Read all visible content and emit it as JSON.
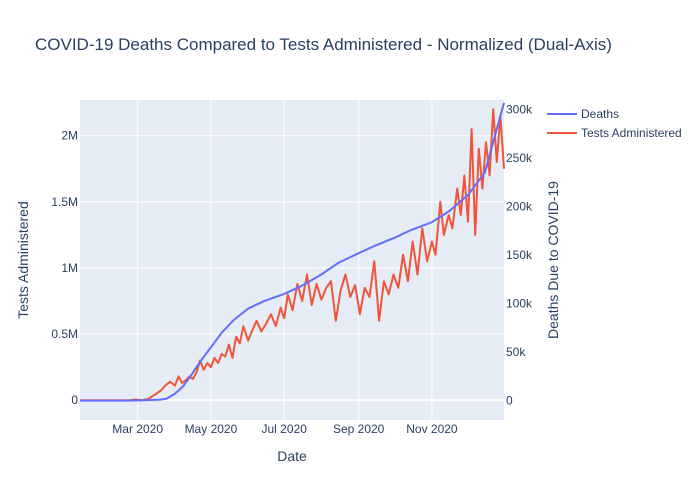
{
  "chart_data": {
    "type": "line",
    "title": "COVID-19 Deaths Compared to Tests Administered - Normalized (Dual-Axis)",
    "xlabel": "Date",
    "ylabel_left": "Tests Administered",
    "ylabel_right": "Deaths Due to COVID-19",
    "xlim": [
      "2020-01-13",
      "2020-12-31"
    ],
    "ylim_left": [
      -150000,
      2270000
    ],
    "ylim_right": [
      -20000,
      310000
    ],
    "x_ticks": [
      {
        "date": "2020-03-01",
        "label": "Mar 2020"
      },
      {
        "date": "2020-05-01",
        "label": "May 2020"
      },
      {
        "date": "2020-07-01",
        "label": "Jul 2020"
      },
      {
        "date": "2020-09-01",
        "label": "Sep 2020"
      },
      {
        "date": "2020-11-01",
        "label": "Nov 2020"
      }
    ],
    "y_left_ticks": [
      {
        "value": 0,
        "label": "0"
      },
      {
        "value": 500000,
        "label": "0.5M"
      },
      {
        "value": 1000000,
        "label": "1M"
      },
      {
        "value": 1500000,
        "label": "1.5M"
      },
      {
        "value": 2000000,
        "label": "2M"
      }
    ],
    "y_right_ticks": [
      {
        "value": 0,
        "label": "0"
      },
      {
        "value": 50000,
        "label": "50k"
      },
      {
        "value": 100000,
        "label": "100k"
      },
      {
        "value": 150000,
        "label": "150k"
      },
      {
        "value": 200000,
        "label": "200k"
      },
      {
        "value": 250000,
        "label": "250k"
      },
      {
        "value": 300000,
        "label": "300k"
      }
    ],
    "grid": true,
    "legend_position": "top-right",
    "series": [
      {
        "name": "Deaths",
        "axis": "right",
        "color": "#636efa",
        "x": [
          "2020-01-13",
          "2020-02-20",
          "2020-03-10",
          "2020-03-20",
          "2020-03-25",
          "2020-04-01",
          "2020-04-08",
          "2020-04-15",
          "2020-04-22",
          "2020-05-01",
          "2020-05-10",
          "2020-05-20",
          "2020-06-01",
          "2020-06-15",
          "2020-07-01",
          "2020-07-15",
          "2020-08-01",
          "2020-08-15",
          "2020-09-01",
          "2020-09-15",
          "2020-10-01",
          "2020-10-15",
          "2020-11-01",
          "2020-11-15",
          "2020-12-01",
          "2020-12-15",
          "2020-12-31"
        ],
        "values": [
          0,
          50,
          500,
          1000,
          2000,
          7000,
          15000,
          27000,
          40000,
          55000,
          70000,
          83000,
          95000,
          103000,
          110000,
          118000,
          130000,
          142000,
          152000,
          160000,
          168000,
          176000,
          184000,
          195000,
          212000,
          235000,
          307000
        ]
      },
      {
        "name": "Tests Administered",
        "axis": "left",
        "color": "#ef553b",
        "x": [
          "2020-01-13",
          "2020-02-24",
          "2020-02-28",
          "2020-03-05",
          "2020-03-10",
          "2020-03-15",
          "2020-03-20",
          "2020-03-24",
          "2020-03-28",
          "2020-04-01",
          "2020-04-04",
          "2020-04-07",
          "2020-04-10",
          "2020-04-13",
          "2020-04-16",
          "2020-04-19",
          "2020-04-22",
          "2020-04-25",
          "2020-04-28",
          "2020-05-01",
          "2020-05-04",
          "2020-05-07",
          "2020-05-10",
          "2020-05-13",
          "2020-05-16",
          "2020-05-19",
          "2020-05-22",
          "2020-05-25",
          "2020-05-28",
          "2020-06-01",
          "2020-06-04",
          "2020-06-08",
          "2020-06-12",
          "2020-06-16",
          "2020-06-20",
          "2020-06-24",
          "2020-06-28",
          "2020-07-01",
          "2020-07-04",
          "2020-07-08",
          "2020-07-12",
          "2020-07-16",
          "2020-07-20",
          "2020-07-24",
          "2020-07-28",
          "2020-08-01",
          "2020-08-05",
          "2020-08-09",
          "2020-08-13",
          "2020-08-17",
          "2020-08-21",
          "2020-08-25",
          "2020-08-29",
          "2020-09-02",
          "2020-09-06",
          "2020-09-10",
          "2020-09-14",
          "2020-09-18",
          "2020-09-22",
          "2020-09-26",
          "2020-09-30",
          "2020-10-04",
          "2020-10-08",
          "2020-10-12",
          "2020-10-16",
          "2020-10-20",
          "2020-10-24",
          "2020-10-28",
          "2020-11-01",
          "2020-11-04",
          "2020-11-08",
          "2020-11-11",
          "2020-11-15",
          "2020-11-18",
          "2020-11-22",
          "2020-11-25",
          "2020-11-28",
          "2020-12-01",
          "2020-12-04",
          "2020-12-07",
          "2020-12-10",
          "2020-12-13",
          "2020-12-16",
          "2020-12-19",
          "2020-12-22",
          "2020-12-25",
          "2020-12-28",
          "2020-12-31"
        ],
        "values": [
          0,
          0,
          5000,
          0,
          10000,
          40000,
          70000,
          110000,
          140000,
          110000,
          180000,
          130000,
          150000,
          180000,
          160000,
          210000,
          300000,
          230000,
          280000,
          250000,
          320000,
          280000,
          350000,
          330000,
          420000,
          320000,
          480000,
          430000,
          560000,
          450000,
          520000,
          600000,
          520000,
          580000,
          650000,
          560000,
          700000,
          620000,
          800000,
          680000,
          880000,
          750000,
          950000,
          720000,
          880000,
          760000,
          850000,
          900000,
          600000,
          830000,
          950000,
          780000,
          870000,
          650000,
          850000,
          780000,
          1050000,
          600000,
          900000,
          800000,
          950000,
          850000,
          1100000,
          900000,
          1200000,
          950000,
          1300000,
          1050000,
          1200000,
          1100000,
          1500000,
          1250000,
          1400000,
          1300000,
          1600000,
          1400000,
          1700000,
          1350000,
          2050000,
          1250000,
          1900000,
          1600000,
          1950000,
          1700000,
          2200000,
          1800000,
          2150000,
          1750000
        ]
      }
    ]
  }
}
